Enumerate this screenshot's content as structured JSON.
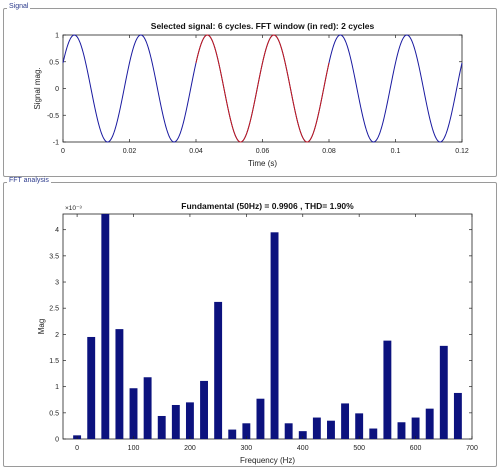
{
  "panels": {
    "signal_title": "Signal",
    "fft_title": "FFT analysis"
  },
  "colors": {
    "signal_line": "#1a1aa0",
    "window_line": "#c41a1a",
    "bar": "#0c127e",
    "axis": "#222222"
  },
  "chart_data": [
    {
      "type": "line",
      "title": "Selected signal: 6 cycles. FFT window (in red): 2 cycles",
      "xlabel": "Time (s)",
      "ylabel": "Signal mag.",
      "xlim": [
        0,
        0.12
      ],
      "ylim": [
        -1,
        1
      ],
      "x_ticks": [
        0,
        0.02,
        0.04,
        0.06,
        0.08,
        0.1,
        0.12
      ],
      "x_tick_labels": [
        "0",
        "0.02",
        "0.04",
        "0.06",
        "0.08",
        "0.1",
        "0.12"
      ],
      "y_ticks": [
        -1,
        -0.5,
        0,
        0.5,
        1
      ],
      "y_tick_labels": [
        "-1",
        "-0.5",
        "0",
        "0.5",
        "1"
      ],
      "frequency_hz": 50,
      "amplitude": 1,
      "phase_rad": 0.5,
      "series": [
        {
          "x_range": [
            0,
            0.12
          ]
        },
        {
          "x_range": [
            0.04,
            0.08
          ]
        }
      ]
    },
    {
      "type": "bar",
      "title": "Fundamental (50Hz) = 0.9906 , THD= 1.90%",
      "xlabel": "Frequency (Hz)",
      "ylabel": "Mag",
      "y_exponent_label": "×10⁻³",
      "xlim": [
        -25,
        700
      ],
      "ylim": [
        0,
        4.3
      ],
      "x_ticks": [
        0,
        100,
        200,
        300,
        400,
        500,
        600,
        700
      ],
      "x_tick_labels": [
        "0",
        "100",
        "200",
        "300",
        "400",
        "500",
        "600",
        "700"
      ],
      "y_ticks": [
        0,
        0.5,
        1,
        1.5,
        2,
        2.5,
        3,
        3.5,
        4
      ],
      "y_tick_labels": [
        "0",
        "0.5",
        "1",
        "1.5",
        "2",
        "2.5",
        "3",
        "3.5",
        "4"
      ],
      "bar_width_hz": 14,
      "x": [
        0,
        25,
        50,
        75,
        100,
        125,
        150,
        175,
        200,
        225,
        250,
        275,
        300,
        325,
        350,
        375,
        400,
        425,
        450,
        475,
        500,
        525,
        550,
        575,
        600,
        625,
        650,
        675
      ],
      "values": [
        0.07,
        1.95,
        4.3,
        2.1,
        0.97,
        1.18,
        0.44,
        0.65,
        0.7,
        1.11,
        2.62,
        0.18,
        0.3,
        0.77,
        3.95,
        0.3,
        0.15,
        0.41,
        0.35,
        0.68,
        0.49,
        0.2,
        1.88,
        0.32,
        0.41,
        0.58,
        1.78,
        0.88
      ]
    }
  ]
}
